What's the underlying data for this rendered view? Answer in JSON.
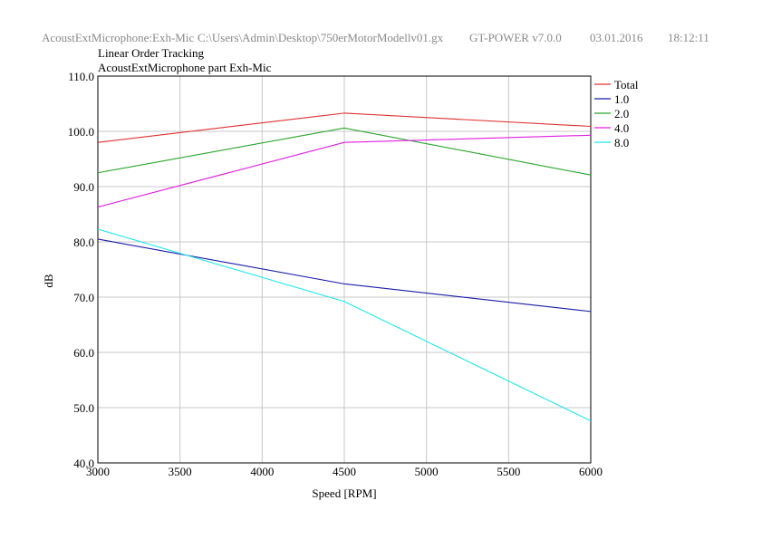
{
  "header": {
    "source": "AcoustExtMicrophone:Exh-Mic",
    "path": "C:\\Users\\Admin\\Desktop\\750erMotorModellv01.gx",
    "app": "GT-POWER v7.0.0",
    "date": "03.01.2016",
    "time": "18:12:11"
  },
  "colors": {
    "Total": "#e03030",
    "1.0": "#1a1aa8",
    "2.0": "#2aa52a",
    "4.0": "#e020e0",
    "8.0": "#20e8e8"
  },
  "chart_data": {
    "type": "line",
    "title": "Linear Order Tracking",
    "subtitle": "AcoustExtMicrophone part Exh-Mic",
    "xlabel": "Speed [RPM]",
    "ylabel": "dB",
    "xlim": [
      3000,
      6000
    ],
    "ylim": [
      40,
      110
    ],
    "xticks": [
      "3000",
      "3500",
      "4000",
      "4500",
      "5000",
      "5500",
      "6000"
    ],
    "yticks": [
      "40.0",
      "50.0",
      "60.0",
      "70.0",
      "80.0",
      "90.0",
      "100.0",
      "110.0"
    ],
    "grid": true,
    "legend": "right",
    "x": [
      3000,
      4500,
      6000
    ],
    "series": [
      {
        "name": "Total",
        "values": [
          98.0,
          103.3,
          100.9
        ]
      },
      {
        "name": "1.0",
        "values": [
          80.5,
          72.4,
          67.4
        ]
      },
      {
        "name": "2.0",
        "values": [
          92.5,
          100.6,
          92.1
        ]
      },
      {
        "name": "4.0",
        "values": [
          86.3,
          98.0,
          99.3
        ]
      },
      {
        "name": "8.0",
        "values": [
          82.3,
          69.2,
          47.6
        ]
      }
    ]
  }
}
